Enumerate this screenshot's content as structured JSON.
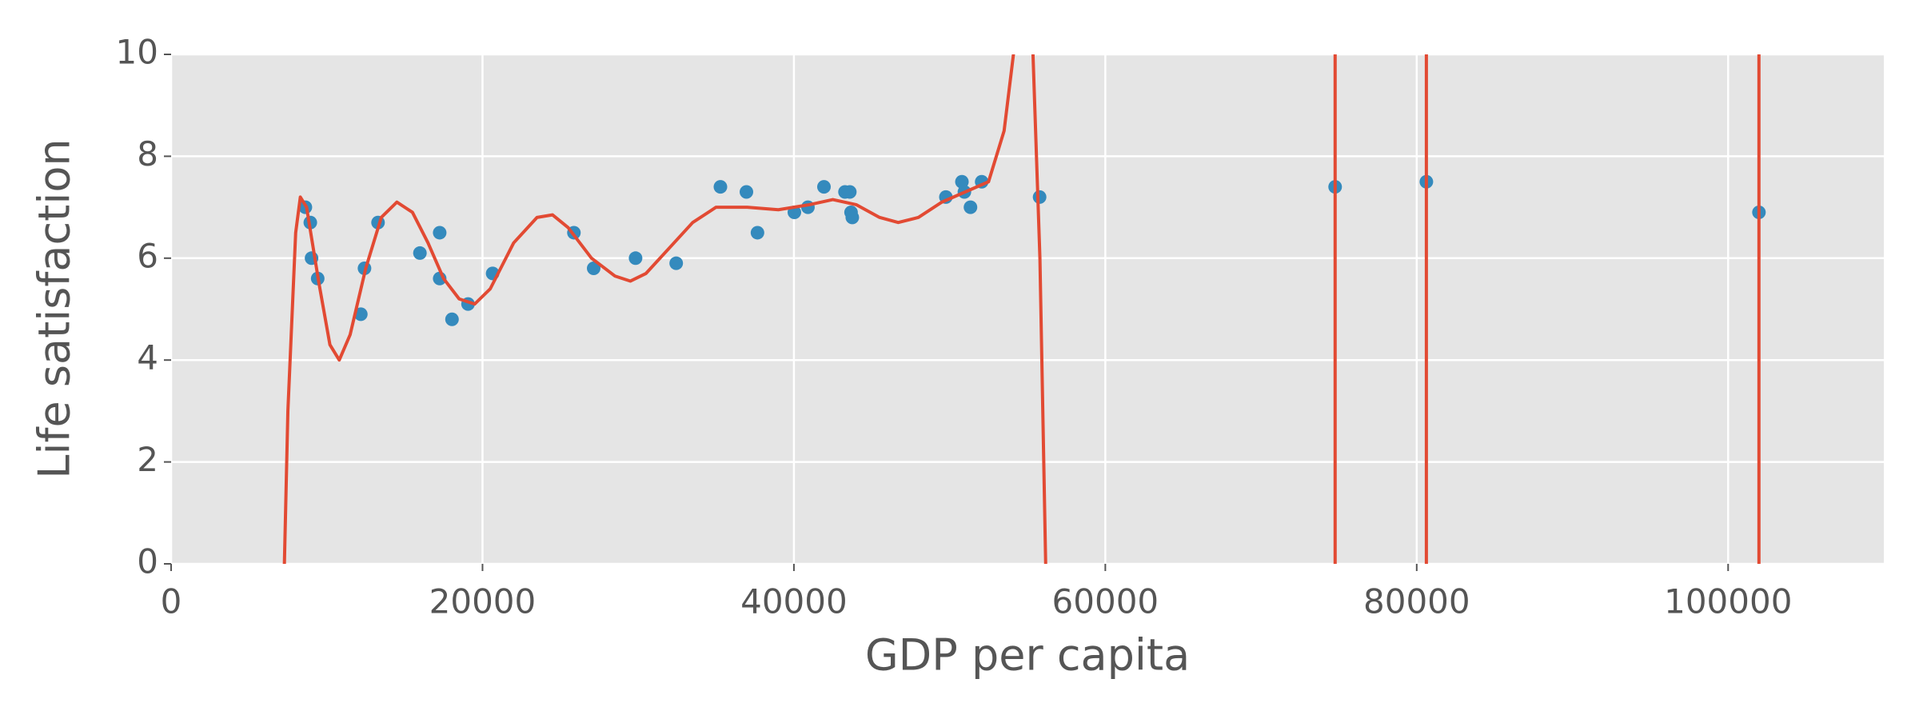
{
  "chart_data": {
    "type": "scatter",
    "xlabel": "GDP per capita",
    "ylabel": "Life satisfaction",
    "xlim": [
      0,
      110000
    ],
    "ylim": [
      0,
      10
    ],
    "xticks": [
      0,
      20000,
      40000,
      60000,
      80000,
      100000
    ],
    "yticks": [
      0,
      2,
      4,
      6,
      8,
      10
    ],
    "grid": true,
    "series": [
      {
        "type": "scatter",
        "color": "#348abd",
        "x": [
          8623,
          8940,
          9020,
          9415,
          12184,
          12420,
          13290,
          15980,
          17250,
          17250,
          18040,
          19070,
          20650,
          25870,
          27140,
          29830,
          32440,
          35280,
          36950,
          37660,
          40030,
          40900,
          41930,
          43280,
          43590,
          43670,
          43750,
          49760,
          50790,
          50950,
          51340,
          52060,
          55780,
          74760,
          80620,
          101980
        ],
        "values": [
          7.0,
          6.7,
          6.0,
          5.6,
          4.9,
          5.8,
          6.7,
          6.1,
          6.5,
          5.6,
          4.8,
          5.1,
          5.7,
          6.5,
          5.8,
          6.0,
          5.9,
          7.4,
          7.3,
          6.5,
          6.9,
          7.0,
          7.4,
          7.3,
          7.3,
          6.9,
          6.8,
          7.2,
          7.5,
          7.3,
          7.0,
          7.5,
          7.2,
          7.4,
          7.5,
          6.9
        ]
      },
      {
        "type": "line",
        "color": "#e24a33",
        "x": [
          7200,
          7500,
          8000,
          8300,
          8700,
          9500,
          10200,
          10800,
          11500,
          12500,
          13500,
          14500,
          15500,
          16500,
          17500,
          18500,
          19500,
          20500,
          22000,
          23500,
          24500,
          25500,
          27000,
          28500,
          29500,
          30500,
          32000,
          33500,
          35000,
          37000,
          39000,
          41000,
          42500,
          44000,
          45500,
          46700,
          48000,
          49500,
          51000,
          52500,
          53500,
          54300,
          55300,
          55800,
          56200,
          null,
          74760,
          74760,
          null,
          80620,
          80620,
          null,
          101980,
          101980
        ],
        "values": [
          -1,
          3,
          6.5,
          7.2,
          7.0,
          5.5,
          4.3,
          4.0,
          4.5,
          5.8,
          6.8,
          7.1,
          6.9,
          6.3,
          5.6,
          5.2,
          5.1,
          5.4,
          6.3,
          6.8,
          6.85,
          6.6,
          6.0,
          5.65,
          5.55,
          5.7,
          6.2,
          6.7,
          7.0,
          7.0,
          6.95,
          7.05,
          7.15,
          7.05,
          6.8,
          6.7,
          6.8,
          7.1,
          7.3,
          7.5,
          8.5,
          10.5,
          10.5,
          6,
          -0.5,
          null,
          -1,
          11,
          null,
          -1,
          11,
          null,
          -1,
          11
        ]
      }
    ]
  }
}
